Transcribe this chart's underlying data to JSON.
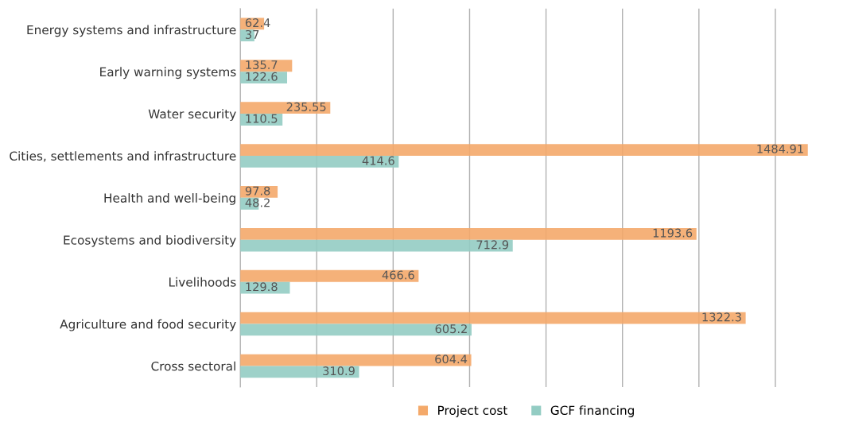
{
  "chart_data": {
    "type": "bar",
    "orientation": "horizontal",
    "categories": [
      "Energy systems and infrastructure",
      "Early warning systems",
      "Water security",
      "Cities, settlements and infrastructure",
      "Health and well-being",
      "Ecosystems and biodiversity",
      "Livelihoods",
      "Agriculture and food security",
      "Cross sectoral"
    ],
    "series": [
      {
        "name": "Project cost",
        "color": "#f4a96a",
        "values": [
          62.4,
          135.7,
          235.55,
          1484.91,
          97.8,
          1193.6,
          466.6,
          1322.3,
          604.4
        ]
      },
      {
        "name": "GCF financing",
        "color": "#93ccc3",
        "values": [
          37,
          122.6,
          110.5,
          414.6,
          48.2,
          712.9,
          129.8,
          605.2,
          310.9
        ]
      }
    ],
    "xticks": [
      {
        "value": 0,
        "label": null
      },
      {
        "value": 200,
        "label": null
      },
      {
        "value": 400,
        "label": null
      },
      {
        "value": 600,
        "label": null
      },
      {
        "value": 800,
        "label": null
      },
      {
        "value": 1000,
        "label": null
      },
      {
        "value": 1200,
        "label": null
      },
      {
        "value": 1400,
        "label": null
      }
    ],
    "tick_labels": "y",
    "grid": "x",
    "legend": "bottom",
    "data_labels": true
  }
}
